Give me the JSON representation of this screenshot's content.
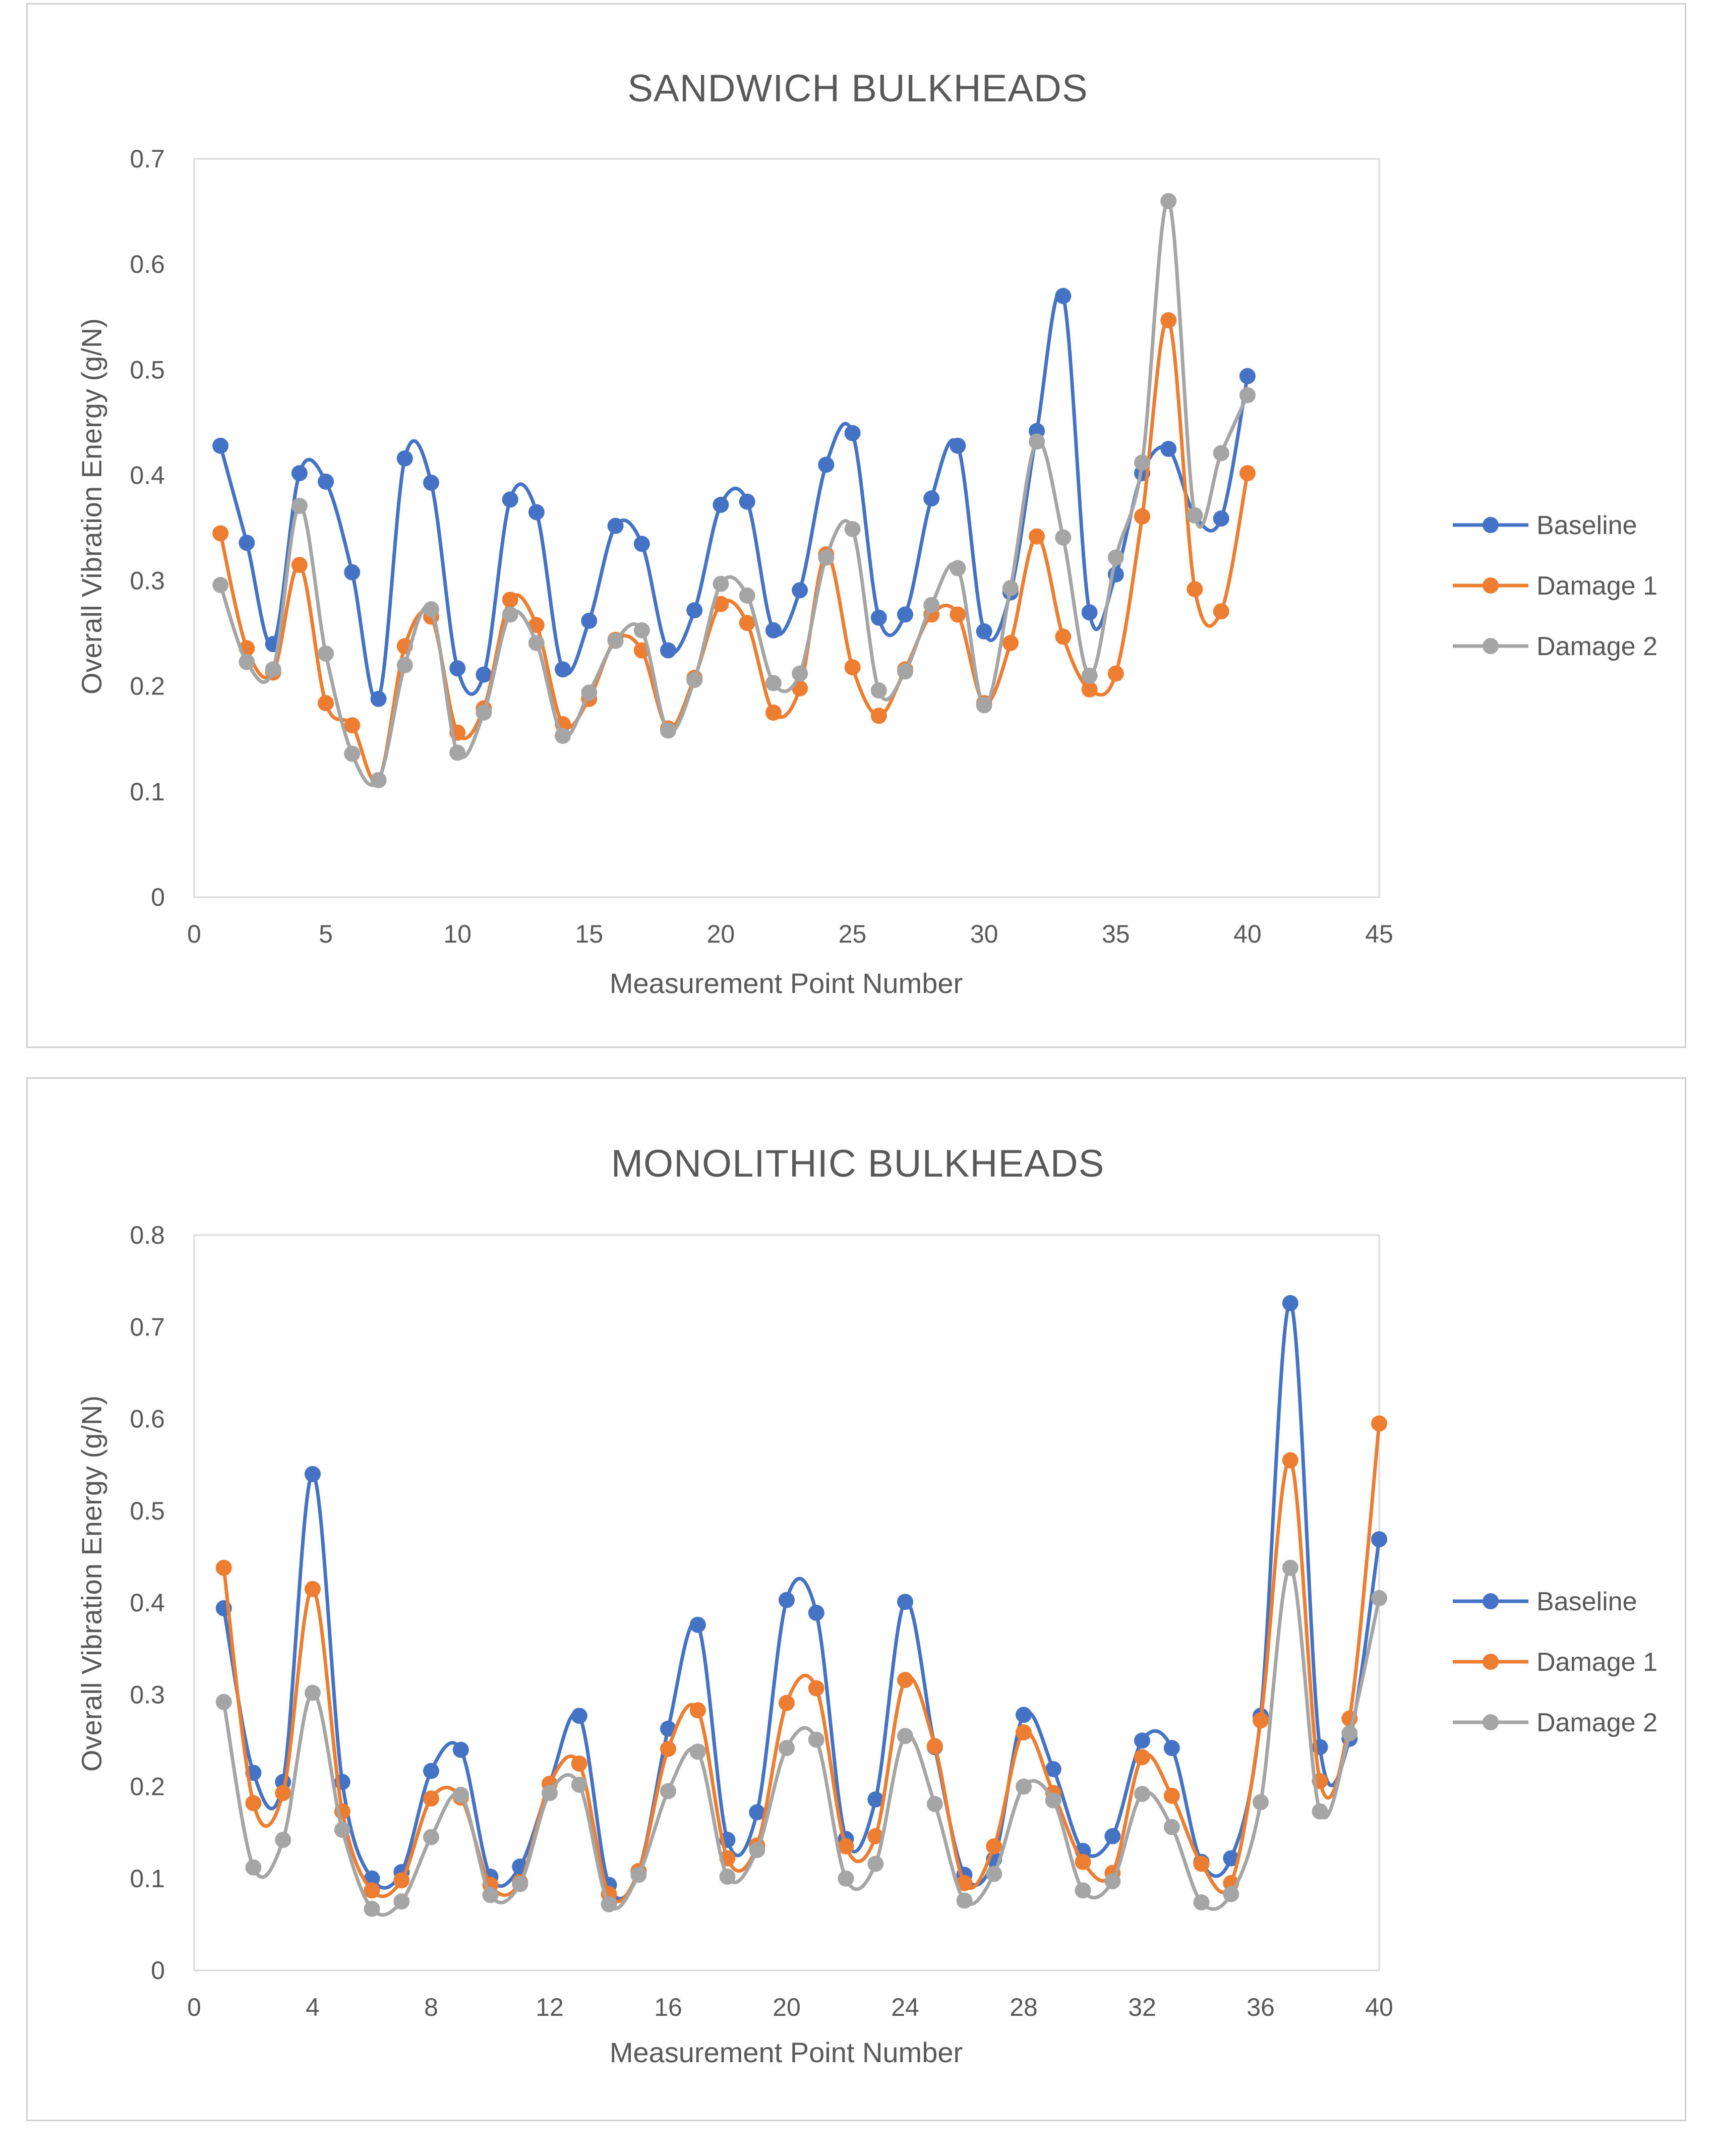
{
  "chart_data": [
    {
      "type": "line",
      "title": "SANDWICH BULKHEADS",
      "xlabel": "Measurement  Point Number",
      "ylabel": "Overall Vibration Energy (g/N)",
      "xlim": [
        0,
        45
      ],
      "ylim": [
        0,
        0.7
      ],
      "xticks": [
        "0",
        "5",
        "10",
        "15",
        "20",
        "25",
        "30",
        "35",
        "40",
        "45"
      ],
      "xtick_values": [
        0,
        5,
        10,
        15,
        20,
        25,
        30,
        35,
        40,
        45
      ],
      "yticks": [
        "0",
        "0.1",
        "0.2",
        "0.3",
        "0.4",
        "0.5",
        "0.6",
        "0.7"
      ],
      "ytick_values": [
        0,
        0.1,
        0.2,
        0.3,
        0.4,
        0.5,
        0.6,
        0.7
      ],
      "grid": false,
      "legend_position": "right",
      "x": [
        1,
        2,
        3,
        4,
        5,
        6,
        7,
        8,
        9,
        10,
        11,
        12,
        13,
        14,
        15,
        16,
        17,
        18,
        19,
        20,
        21,
        22,
        23,
        24,
        25,
        26,
        27,
        28,
        29,
        30,
        31,
        32,
        33,
        34,
        35,
        36,
        37,
        38,
        39,
        40
      ],
      "series": [
        {
          "name": "Baseline",
          "color": "#4472c4",
          "values": [
            0.428,
            0.336,
            0.24,
            0.402,
            0.394,
            0.308,
            0.188,
            0.416,
            0.393,
            0.217,
            0.211,
            0.377,
            0.365,
            0.216,
            0.262,
            0.352,
            0.335,
            0.234,
            0.272,
            0.372,
            0.375,
            0.253,
            0.291,
            0.41,
            0.44,
            0.265,
            0.268,
            0.378,
            0.428,
            0.252,
            0.289,
            0.442,
            0.57,
            0.27,
            0.306,
            0.402,
            0.425,
            0.362,
            0.359,
            0.494
          ]
        },
        {
          "name": "Damage 1",
          "color": "#ed7d31",
          "values": [
            0.345,
            0.236,
            0.213,
            0.315,
            0.184,
            0.163,
            0.111,
            0.238,
            0.266,
            0.156,
            0.179,
            0.282,
            0.258,
            0.164,
            0.188,
            0.244,
            0.234,
            0.16,
            0.208,
            0.278,
            0.26,
            0.175,
            0.198,
            0.325,
            0.218,
            0.172,
            0.216,
            0.268,
            0.268,
            0.184,
            0.241,
            0.342,
            0.247,
            0.197,
            0.212,
            0.361,
            0.547,
            0.292,
            0.271,
            0.402
          ]
        },
        {
          "name": "Damage 2",
          "color": "#a5a5a5",
          "values": [
            0.296,
            0.223,
            0.216,
            0.371,
            0.231,
            0.136,
            0.111,
            0.22,
            0.273,
            0.137,
            0.175,
            0.268,
            0.241,
            0.153,
            0.194,
            0.243,
            0.253,
            0.158,
            0.206,
            0.297,
            0.286,
            0.203,
            0.212,
            0.322,
            0.349,
            0.196,
            0.214,
            0.277,
            0.312,
            0.182,
            0.293,
            0.432,
            0.341,
            0.21,
            0.322,
            0.412,
            0.66,
            0.362,
            0.421,
            0.476
          ]
        }
      ]
    },
    {
      "type": "line",
      "title": "MONOLITHIC BULKHEADS",
      "xlabel": "Measurement  Point Number",
      "ylabel": "Overall Vibration Energy  (g/N)",
      "xlim": [
        0,
        40
      ],
      "ylim": [
        0,
        0.8
      ],
      "xticks": [
        "0",
        "4",
        "8",
        "12",
        "16",
        "20",
        "24",
        "28",
        "32",
        "36",
        "40"
      ],
      "xtick_values": [
        0,
        4,
        8,
        12,
        16,
        20,
        24,
        28,
        32,
        36,
        40
      ],
      "yticks": [
        "0",
        "0.1",
        "0.2",
        "0.3",
        "0.4",
        "0.5",
        "0.6",
        "0.7",
        "0.8"
      ],
      "ytick_values": [
        0,
        0.1,
        0.2,
        0.3,
        0.4,
        0.5,
        0.6,
        0.7,
        0.8
      ],
      "grid": false,
      "legend_position": "right",
      "x": [
        1,
        2,
        3,
        4,
        5,
        6,
        7,
        8,
        9,
        10,
        11,
        12,
        13,
        14,
        15,
        16,
        17,
        18,
        19,
        20,
        21,
        22,
        23,
        24,
        25,
        26,
        27,
        28,
        29,
        30,
        31,
        32,
        33,
        34,
        35,
        36,
        37,
        38,
        39,
        40
      ],
      "series": [
        {
          "name": "Baseline",
          "color": "#4472c4",
          "values": [
            0.394,
            0.215,
            0.205,
            0.54,
            0.205,
            0.1,
            0.107,
            0.217,
            0.24,
            0.102,
            0.113,
            0.203,
            0.277,
            0.093,
            0.108,
            0.263,
            0.376,
            0.142,
            0.172,
            0.403,
            0.389,
            0.143,
            0.186,
            0.401,
            0.243,
            0.104,
            0.121,
            0.278,
            0.219,
            0.13,
            0.146,
            0.25,
            0.242,
            0.118,
            0.122,
            0.277,
            0.726,
            0.243,
            0.252,
            0.469
          ]
        },
        {
          "name": "Damage 1",
          "color": "#ed7d31",
          "values": [
            0.438,
            0.182,
            0.193,
            0.415,
            0.173,
            0.087,
            0.098,
            0.187,
            0.188,
            0.093,
            0.096,
            0.203,
            0.225,
            0.083,
            0.108,
            0.241,
            0.283,
            0.122,
            0.136,
            0.291,
            0.307,
            0.135,
            0.146,
            0.316,
            0.244,
            0.095,
            0.135,
            0.259,
            0.193,
            0.118,
            0.106,
            0.232,
            0.19,
            0.116,
            0.095,
            0.272,
            0.555,
            0.206,
            0.274,
            0.595
          ]
        },
        {
          "name": "Damage 2",
          "color": "#a5a5a5",
          "values": [
            0.292,
            0.112,
            0.142,
            0.302,
            0.153,
            0.067,
            0.075,
            0.145,
            0.191,
            0.082,
            0.094,
            0.193,
            0.202,
            0.072,
            0.104,
            0.195,
            0.238,
            0.102,
            0.131,
            0.242,
            0.251,
            0.1,
            0.116,
            0.255,
            0.181,
            0.076,
            0.105,
            0.2,
            0.185,
            0.087,
            0.097,
            0.192,
            0.156,
            0.074,
            0.083,
            0.183,
            0.438,
            0.173,
            0.258,
            0.405
          ]
        }
      ]
    }
  ]
}
